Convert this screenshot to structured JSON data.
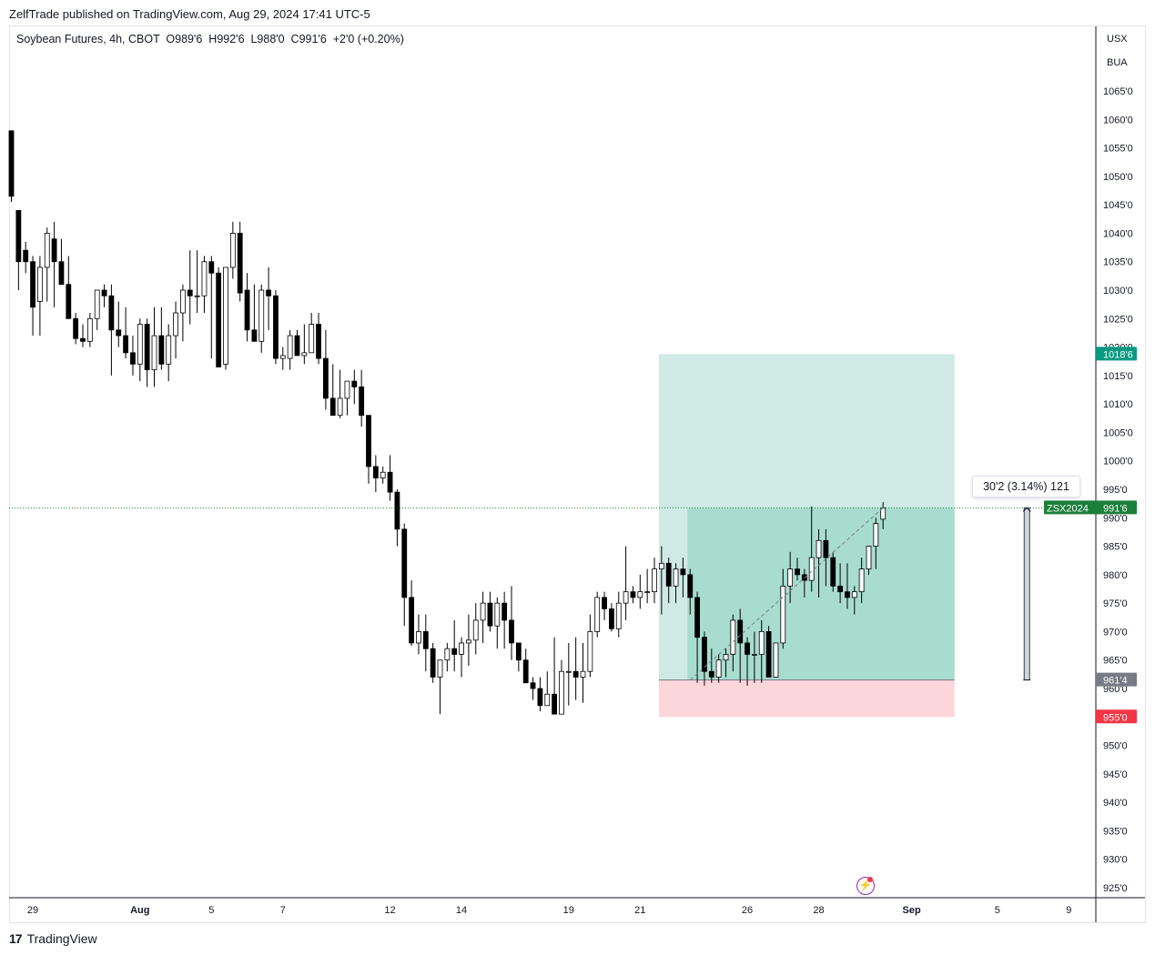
{
  "header": {
    "publisher_line": "ZelfTrade published on TradingView.com, Aug 29, 2024 17:41 UTC-5"
  },
  "legend": {
    "text": "Soybean Futures, 4h, CBOT  O989'6  H992'6  L988'0  C991'6  +2'0 (+0.20%)"
  },
  "currency": {
    "line1": "USX",
    "line2": "BUA"
  },
  "footer": {
    "logo": "17",
    "brand": "TradingView"
  },
  "measure": {
    "label": "30'2 (3.14%) 121"
  },
  "colors": {
    "up_body": "#ffffff",
    "down_body": "#000000",
    "wick": "#000000",
    "profit_zone": "#cfeae5",
    "profit_filled": "#a8dccf",
    "loss_zone": "#fbd6da",
    "target_tag": "#089981",
    "stop_tag": "#f23645",
    "entry_tag": "#787b86",
    "last_price_tag": "#1b7f3a"
  },
  "chart_data": {
    "type": "candlestick",
    "instrument": "Soybean Futures",
    "interval": "4h",
    "exchange": "CBOT",
    "ylim": [
      922,
      1072
    ],
    "y_ticks": [
      "1065'0",
      "1060'0",
      "1055'0",
      "1050'0",
      "1045'0",
      "1040'0",
      "1035'0",
      "1030'0",
      "1025'0",
      "1020'0",
      "1015'0",
      "1010'0",
      "1005'0",
      "1000'0",
      "995'0",
      "990'0",
      "985'0",
      "980'0",
      "975'0",
      "970'0",
      "965'0",
      "960'0",
      "955'0",
      "950'0",
      "945'0",
      "940'0",
      "935'0",
      "930'0",
      "925'0"
    ],
    "y_tick_values": [
      1065,
      1060,
      1055,
      1050,
      1045,
      1040,
      1035,
      1030,
      1025,
      1020,
      1015,
      1010,
      1005,
      1000,
      995,
      990,
      985,
      980,
      975,
      970,
      965,
      960,
      955,
      950,
      945,
      940,
      935,
      930,
      925
    ],
    "x_ticks": [
      {
        "label": "29",
        "bar": 3
      },
      {
        "label": "Aug",
        "bar": 18
      },
      {
        "label": "5",
        "bar": 28
      },
      {
        "label": "7",
        "bar": 38
      },
      {
        "label": "12",
        "bar": 53
      },
      {
        "label": "14",
        "bar": 63
      },
      {
        "label": "19",
        "bar": 78
      },
      {
        "label": "21",
        "bar": 88
      },
      {
        "label": "26",
        "bar": 103
      },
      {
        "label": "28",
        "bar": 113
      },
      {
        "label": "Sep",
        "bar": 126
      },
      {
        "label": "5",
        "bar": 138
      },
      {
        "label": "9",
        "bar": 148
      }
    ],
    "x_tick_bold": [
      "Aug",
      "Sep"
    ],
    "candles": [
      [
        1058,
        1058,
        1045.5,
        1046.5
      ],
      [
        1044,
        1044,
        1030,
        1035
      ],
      [
        1037,
        1038.5,
        1033,
        1035
      ],
      [
        1035,
        1036,
        1022,
        1027
      ],
      [
        1028,
        1036,
        1022,
        1034
      ],
      [
        1034,
        1041,
        1028,
        1040
      ],
      [
        1039,
        1042,
        1027,
        1035
      ],
      [
        1035,
        1039,
        1031,
        1031
      ],
      [
        1031,
        1036,
        1025,
        1025
      ],
      [
        1025,
        1026,
        1020.5,
        1021.5
      ],
      [
        1021.5,
        1024,
        1020,
        1021
      ],
      [
        1021,
        1026,
        1020,
        1025
      ],
      [
        1025,
        1030,
        1023,
        1030
      ],
      [
        1030,
        1031,
        1027,
        1029
      ],
      [
        1029,
        1031,
        1015,
        1023
      ],
      [
        1023,
        1028,
        1020,
        1022
      ],
      [
        1022,
        1027,
        1018,
        1019
      ],
      [
        1019,
        1022,
        1015,
        1017
      ],
      [
        1017,
        1025,
        1014,
        1024
      ],
      [
        1024,
        1025,
        1013,
        1016
      ],
      [
        1016,
        1027,
        1013,
        1022
      ],
      [
        1022,
        1027,
        1016,
        1017
      ],
      [
        1017,
        1024,
        1014,
        1022
      ],
      [
        1022,
        1028,
        1018,
        1026
      ],
      [
        1026,
        1031,
        1021,
        1030
      ],
      [
        1030,
        1037,
        1024,
        1029
      ],
      [
        1029,
        1037,
        1026,
        1029
      ],
      [
        1029,
        1036,
        1026,
        1035
      ],
      [
        1035,
        1036,
        1018,
        1033
      ],
      [
        1033,
        1034,
        1018,
        1016.5
      ],
      [
        1017,
        1033,
        1016,
        1034
      ],
      [
        1034,
        1042,
        1032,
        1040
      ],
      [
        1040,
        1042,
        1028,
        1029.5
      ],
      [
        1030,
        1033,
        1021,
        1023
      ],
      [
        1023,
        1031,
        1021,
        1021
      ],
      [
        1021,
        1031,
        1019,
        1030
      ],
      [
        1030,
        1034,
        1023,
        1029
      ],
      [
        1029,
        1030,
        1017,
        1018
      ],
      [
        1018,
        1020,
        1016,
        1018.5
      ],
      [
        1018,
        1023,
        1016,
        1022
      ],
      [
        1022,
        1023,
        1019,
        1018.5
      ],
      [
        1018.5,
        1024,
        1017,
        1019
      ],
      [
        1019,
        1026,
        1019,
        1024
      ],
      [
        1024,
        1026,
        1017,
        1018
      ],
      [
        1018,
        1023,
        1009,
        1011
      ],
      [
        1011,
        1017,
        1008,
        1008
      ],
      [
        1008,
        1016,
        1007.5,
        1011
      ],
      [
        1011,
        1014,
        1008,
        1014
      ],
      [
        1014,
        1016,
        1010,
        1013
      ],
      [
        1013,
        1016,
        1006,
        1008
      ],
      [
        1008,
        1008,
        996,
        999
      ],
      [
        999,
        1001,
        994.5,
        997
      ],
      [
        997,
        999,
        996,
        998
      ],
      [
        998,
        1001,
        993,
        994.5
      ],
      [
        994.5,
        995,
        985,
        988
      ],
      [
        988,
        989,
        971,
        976
      ],
      [
        976,
        979,
        967.5,
        968
      ],
      [
        968,
        973,
        966,
        970
      ],
      [
        970,
        973,
        963,
        967
      ],
      [
        967,
        968,
        961,
        962
      ],
      [
        962,
        964,
        955.5,
        965
      ],
      [
        965,
        968,
        963,
        967
      ],
      [
        967,
        972,
        963,
        966
      ],
      [
        966,
        969,
        962,
        968
      ],
      [
        968,
        973,
        964,
        968.5
      ],
      [
        968.5,
        975,
        966,
        972
      ],
      [
        972,
        977,
        968,
        975
      ],
      [
        975,
        977,
        970,
        971
      ],
      [
        971,
        976,
        967,
        975
      ],
      [
        975,
        977,
        967,
        972
      ],
      [
        972,
        978,
        965,
        968
      ],
      [
        968,
        968,
        963,
        965
      ],
      [
        965,
        967,
        961,
        961
      ],
      [
        961,
        962,
        958,
        960
      ],
      [
        960,
        962,
        956,
        957
      ],
      [
        957,
        963,
        957,
        959
      ],
      [
        959,
        969,
        955.5,
        955.5
      ],
      [
        955.5,
        965,
        955.5,
        963
      ],
      [
        963,
        968,
        957,
        963
      ],
      [
        963,
        969,
        958,
        962
      ],
      [
        962,
        968,
        957.5,
        963
      ],
      [
        963,
        973,
        962,
        970
      ],
      [
        970,
        977,
        969,
        976
      ],
      [
        976,
        977,
        972,
        974
      ],
      [
        974,
        975,
        970,
        970.5
      ],
      [
        970.5,
        977,
        969,
        975
      ],
      [
        975,
        985,
        972,
        977
      ],
      [
        977,
        978,
        975,
        976
      ],
      [
        976,
        980,
        974,
        977
      ],
      [
        977,
        981,
        975,
        977
      ],
      [
        977,
        983,
        975,
        981
      ],
      [
        981,
        985,
        973,
        982
      ],
      [
        982,
        983,
        975,
        978
      ],
      [
        978,
        982,
        975,
        981
      ],
      [
        981,
        983,
        976,
        980
      ],
      [
        980,
        981,
        973,
        976
      ],
      [
        976,
        977,
        961,
        969
      ],
      [
        969,
        970,
        960.5,
        963
      ],
      [
        963,
        967,
        961,
        962
      ],
      [
        962,
        966,
        961,
        965
      ],
      [
        965,
        967,
        962,
        966
      ],
      [
        966,
        973,
        963,
        972
      ],
      [
        972,
        974,
        961,
        968
      ],
      [
        968,
        969,
        960.5,
        966
      ],
      [
        966,
        970,
        961,
        966
      ],
      [
        966,
        972,
        961,
        970
      ],
      [
        970,
        971,
        962,
        962
      ],
      [
        962,
        967,
        962,
        968
      ],
      [
        968,
        981,
        967,
        978
      ],
      [
        978,
        984,
        975,
        981
      ],
      [
        981,
        983,
        979,
        980
      ],
      [
        980,
        981,
        976,
        979
      ],
      [
        979,
        992,
        977,
        983
      ],
      [
        983,
        988,
        976,
        986
      ],
      [
        986,
        988,
        978,
        983
      ],
      [
        983,
        984,
        977,
        978
      ],
      [
        978,
        982,
        975,
        977
      ],
      [
        977,
        982,
        974,
        976
      ],
      [
        976,
        978,
        973,
        977
      ],
      [
        977,
        983,
        975,
        981
      ],
      [
        981,
        984,
        980,
        985
      ],
      [
        985,
        990,
        981,
        989
      ],
      [
        989.75,
        992.75,
        988,
        991.75
      ]
    ],
    "position": {
      "type": "long",
      "target": 1018.75,
      "target_label": "1018'6",
      "entry": 961.5,
      "entry_label": "961'4",
      "stop": 955.0,
      "stop_label": "955'0",
      "start_bar": 91,
      "end_bar": 132,
      "fill_start_bar": 95,
      "current": 991.75
    },
    "last_price": {
      "symbol": "ZSX2024",
      "value": 991.75,
      "label": "991'6"
    },
    "measure": {
      "from": 961.5,
      "to": 991.75,
      "bar": 142
    }
  }
}
